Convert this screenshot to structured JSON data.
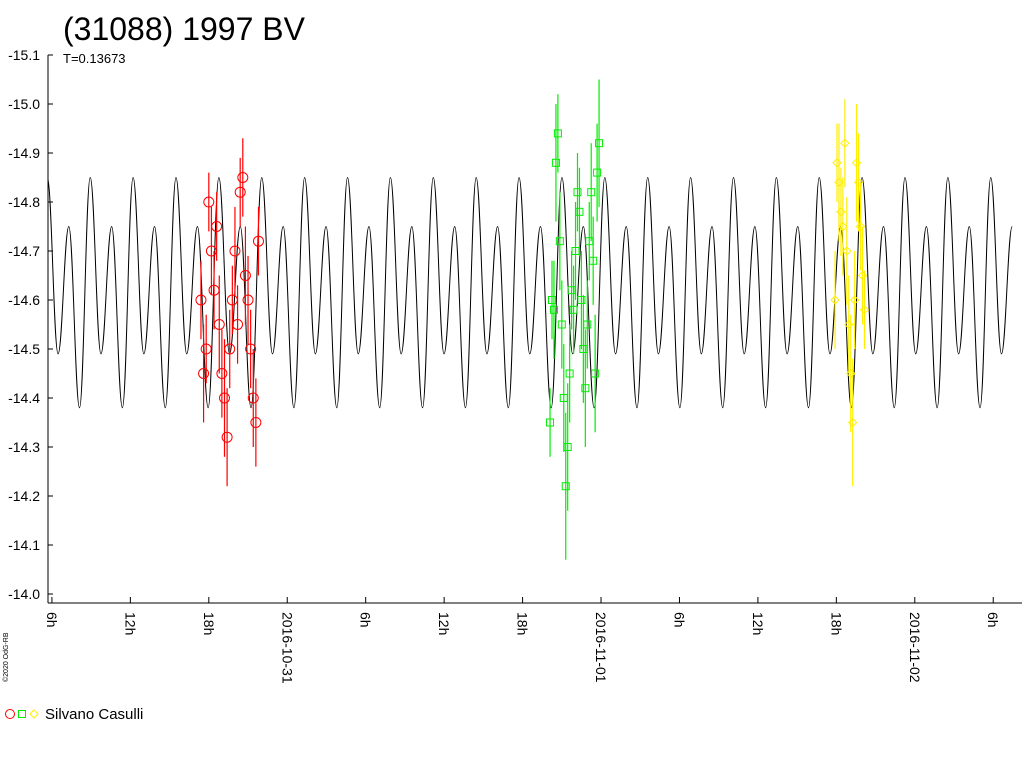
{
  "chart_data": {
    "type": "scatter",
    "title": "(31088) 1997 BV",
    "subtitle": "T=0.13673",
    "copyright": "©2020 OdG-RB",
    "y_inverted": true,
    "ylim": [
      -15.1,
      -14.0
    ],
    "yticks": [
      -15.1,
      {
        "value": -15,
        "label": "-15.0"
      },
      -14.9,
      -14.8,
      -14.7,
      -14.6,
      -14.5,
      -14.4,
      -14.3,
      -14.2,
      -14.1,
      {
        "value": -14,
        "label": "-14.0"
      }
    ],
    "xlim": [
      -18.3,
      56.2
    ],
    "xticks": [
      {
        "value": -18,
        "label": "6h"
      },
      {
        "value": -12,
        "label": "12h"
      },
      {
        "value": -6,
        "label": "18h"
      },
      {
        "value": 0,
        "label": "2016-10-31"
      },
      {
        "value": 6,
        "label": "6h"
      },
      {
        "value": 12,
        "label": "12h"
      },
      {
        "value": 18,
        "label": "18h"
      },
      {
        "value": 24,
        "label": "2016-11-01"
      },
      {
        "value": 30,
        "label": "6h"
      },
      {
        "value": 36,
        "label": "12h"
      },
      {
        "value": 42,
        "label": "18h"
      },
      {
        "value": 48,
        "label": "2016-11-02"
      },
      {
        "value": 54,
        "label": "6h"
      }
    ],
    "legend": {
      "label": "Silvano Casulli"
    },
    "curve": {
      "color": "#000000",
      "x": [
        -18.35,
        -17.53,
        -16.71,
        -15.89,
        -15.07,
        -14.25,
        -13.43,
        -12.61,
        -11.79,
        -10.97,
        -10.15,
        -9.33,
        -8.51,
        -7.69,
        -6.87,
        -6.05,
        -5.23,
        -4.41,
        -3.59,
        -2.77,
        -1.95,
        -1.13,
        -0.31,
        0.51,
        1.33,
        2.15,
        2.97,
        3.79,
        4.61,
        5.43,
        6.25,
        7.07,
        7.89,
        8.71,
        9.53,
        10.35,
        11.17,
        11.99,
        12.81,
        13.63,
        14.45,
        15.27,
        16.09,
        16.91,
        17.73,
        18.55,
        19.37,
        20.19,
        21.01,
        21.83,
        22.65,
        23.47,
        24.29,
        25.11,
        25.93,
        26.75,
        27.57,
        28.39,
        29.21,
        30.03,
        30.85,
        31.67,
        32.49,
        33.31,
        34.13,
        34.95,
        35.77,
        36.59,
        37.41,
        38.23,
        39.05,
        39.87,
        40.69,
        41.51,
        42.33,
        43.15,
        43.97,
        44.79,
        45.61,
        46.43,
        47.25,
        48.07,
        48.89,
        49.71,
        50.53,
        51.35,
        52.17,
        52.99,
        53.81,
        54.63,
        55.45
      ],
      "values": [
        -14.85,
        -14.49,
        -14.75,
        -14.38,
        -14.85,
        -14.49,
        -14.75,
        -14.38,
        -14.85,
        -14.49,
        -14.75,
        -14.38,
        -14.85,
        -14.49,
        -14.75,
        -14.38,
        -14.85,
        -14.49,
        -14.75,
        -14.38,
        -14.85,
        -14.49,
        -14.75,
        -14.38,
        -14.85,
        -14.49,
        -14.75,
        -14.38,
        -14.85,
        -14.49,
        -14.75,
        -14.38,
        -14.85,
        -14.49,
        -14.75,
        -14.38,
        -14.85,
        -14.49,
        -14.75,
        -14.38,
        -14.85,
        -14.49,
        -14.75,
        -14.38,
        -14.85,
        -14.49,
        -14.75,
        -14.38,
        -14.85,
        -14.49,
        -14.75,
        -14.38,
        -14.85,
        -14.49,
        -14.75,
        -14.38,
        -14.85,
        -14.49,
        -14.75,
        -14.38,
        -14.85,
        -14.49,
        -14.75,
        -14.38,
        -14.85,
        -14.49,
        -14.75,
        -14.38,
        -14.85,
        -14.49,
        -14.75,
        -14.38,
        -14.85,
        -14.49,
        -14.75,
        -14.38,
        -14.85,
        -14.49,
        -14.75,
        -14.38,
        -14.85,
        -14.49,
        -14.75,
        -14.38,
        -14.85,
        -14.49,
        -14.75,
        -14.38,
        -14.85,
        -14.49,
        -14.75
      ]
    },
    "series": [
      {
        "color": "#ff0000",
        "marker": "circle",
        "x": [
          -6.6,
          -6.4,
          -6.2,
          -6.0,
          -5.8,
          -5.6,
          -5.4,
          -5.2,
          -5.0,
          -4.8,
          -4.6,
          -4.4,
          -4.2,
          -4.0,
          -3.8,
          -3.6,
          -3.4,
          -3.2,
          -3.0,
          -2.8,
          -2.6,
          -2.4,
          -2.2
        ],
        "values": [
          -14.6,
          -14.45,
          -14.5,
          -14.8,
          -14.7,
          -14.62,
          -14.75,
          -14.55,
          -14.45,
          -14.4,
          -14.32,
          -14.5,
          -14.6,
          -14.7,
          -14.55,
          -14.82,
          -14.85,
          -14.65,
          -14.6,
          -14.5,
          -14.4,
          -14.35,
          -14.72
        ],
        "errors": [
          0.08,
          0.1,
          0.07,
          0.06,
          0.09,
          0.08,
          0.07,
          0.1,
          0.09,
          0.12,
          0.1,
          0.08,
          0.07,
          0.09,
          0.08,
          0.07,
          0.08,
          0.1,
          0.09,
          0.08,
          0.1,
          0.09,
          0.07
        ]
      },
      {
        "color": "#00ee00",
        "marker": "square",
        "x": [
          20.1,
          20.25,
          20.4,
          20.55,
          20.7,
          20.85,
          21.0,
          21.15,
          21.3,
          21.45,
          21.6,
          21.75,
          21.9,
          22.05,
          22.2,
          22.35,
          22.5,
          22.65,
          22.8,
          22.95,
          23.1,
          23.25,
          23.4,
          23.55,
          23.7,
          23.85
        ],
        "values": [
          -14.35,
          -14.6,
          -14.58,
          -14.88,
          -14.94,
          -14.72,
          -14.55,
          -14.4,
          -14.22,
          -14.3,
          -14.45,
          -14.62,
          -14.58,
          -14.7,
          -14.82,
          -14.78,
          -14.6,
          -14.5,
          -14.42,
          -14.55,
          -14.72,
          -14.82,
          -14.68,
          -14.45,
          -14.86,
          -14.92
        ],
        "errors": [
          0.07,
          0.08,
          0.1,
          0.12,
          0.08,
          0.1,
          0.09,
          0.11,
          0.15,
          0.13,
          0.1,
          0.08,
          0.09,
          0.1,
          0.08,
          0.09,
          0.1,
          0.11,
          0.12,
          0.09,
          0.08,
          0.1,
          0.09,
          0.12,
          0.1,
          0.13
        ]
      },
      {
        "color": "#ffee00",
        "marker": "diamond",
        "x": [
          41.9,
          42.05,
          42.2,
          42.35,
          42.5,
          42.65,
          42.8,
          42.95,
          43.1,
          43.25,
          43.4,
          43.55,
          43.7,
          43.85,
          44.0,
          44.15
        ],
        "values": [
          -14.6,
          -14.88,
          -14.84,
          -14.78,
          -14.75,
          -14.92,
          -14.7,
          -14.55,
          -14.45,
          -14.35,
          -14.6,
          -14.88,
          -14.84,
          -14.75,
          -14.65,
          -14.58
        ],
        "errors": [
          0.1,
          0.08,
          0.12,
          0.09,
          0.1,
          0.09,
          0.11,
          0.1,
          0.12,
          0.13,
          0.1,
          0.12,
          0.1,
          0.09,
          0.1,
          0.08
        ]
      }
    ]
  }
}
